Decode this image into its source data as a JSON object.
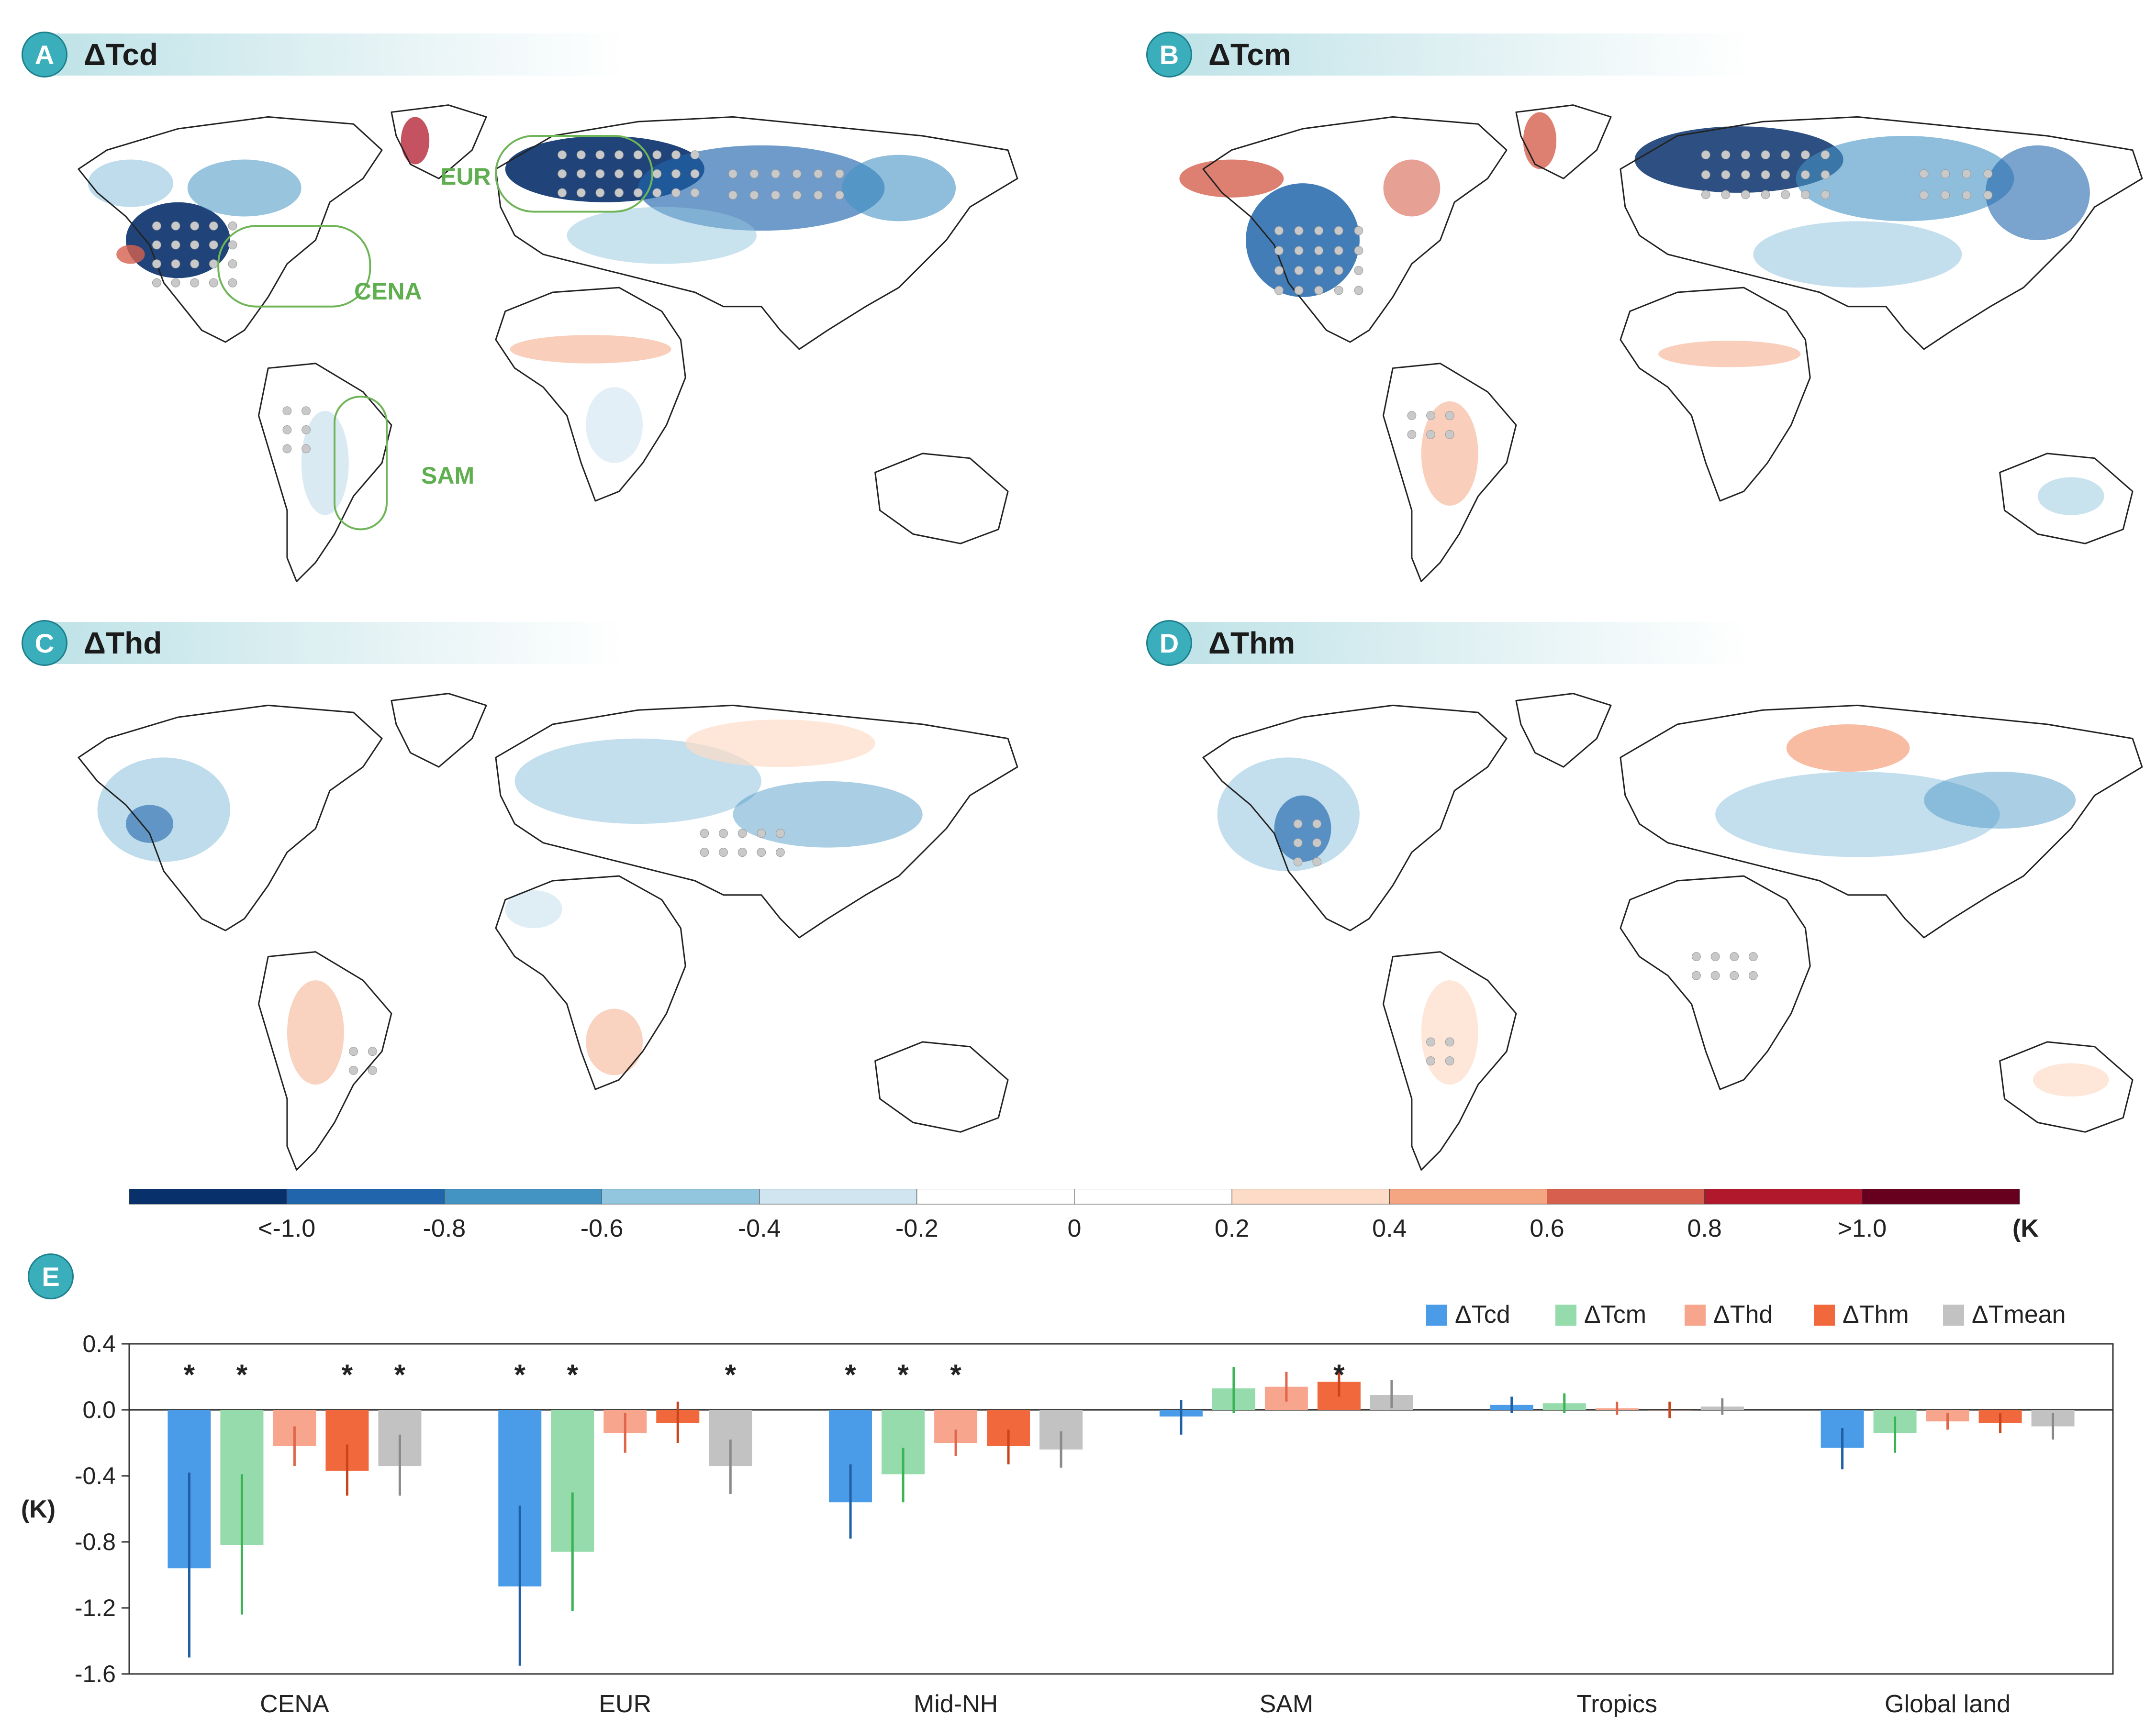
{
  "panels": [
    {
      "letter": "A",
      "title": "ΔTcd",
      "regions": [
        "EUR",
        "CENA",
        "SAM"
      ]
    },
    {
      "letter": "B",
      "title": "ΔTcm"
    },
    {
      "letter": "C",
      "title": "ΔThd"
    },
    {
      "letter": "D",
      "title": "ΔThm"
    }
  ],
  "colorbar": {
    "colors": [
      "#08306b",
      "#2166ac",
      "#4393c3",
      "#92c5de",
      "#d1e5f0",
      "#ffffff",
      "#ffffff",
      "#fddbc7",
      "#f4a582",
      "#d6604d",
      "#b2182b",
      "#67001f"
    ],
    "labels": [
      "<-1.0",
      "-0.8",
      "-0.6",
      "-0.4",
      "-0.2",
      "0",
      "0.2",
      "0.4",
      "0.6",
      "0.8",
      ">1.0"
    ],
    "unit": "(K)"
  },
  "panel_e": {
    "letter": "E"
  },
  "chart_data": {
    "type": "bar",
    "categories": [
      "CENA",
      "EUR",
      "Mid-NH",
      "SAM",
      "Tropics",
      "Global land"
    ],
    "ylabel": "(K)",
    "ylim": [
      -1.6,
      0.4
    ],
    "yticks": [
      "0.4",
      "0.0",
      "-0.4",
      "-0.8",
      "-1.2",
      "-1.6"
    ],
    "significance_marker": "*",
    "legend_position": "top-right",
    "series": [
      {
        "name": "ΔTcd",
        "color": "#4a9be8",
        "edge": "#1f5fa6",
        "values": [
          -0.96,
          -1.07,
          -0.56,
          -0.04,
          0.03,
          -0.23
        ],
        "err_low": [
          -1.5,
          -1.55,
          -0.78,
          -0.15,
          -0.02,
          -0.36
        ],
        "err_high": [
          -0.38,
          -0.58,
          -0.33,
          0.06,
          0.08,
          -0.11
        ],
        "sig": [
          true,
          true,
          true,
          false,
          false,
          false
        ]
      },
      {
        "name": "ΔTcm",
        "color": "#95dbac",
        "edge": "#3bb456",
        "values": [
          -0.82,
          -0.86,
          -0.39,
          0.13,
          0.04,
          -0.14
        ],
        "err_low": [
          -1.24,
          -1.22,
          -0.56,
          -0.02,
          -0.02,
          -0.26
        ],
        "err_high": [
          -0.39,
          -0.5,
          -0.23,
          0.26,
          0.1,
          -0.04
        ],
        "sig": [
          true,
          true,
          true,
          false,
          false,
          false
        ]
      },
      {
        "name": "ΔThd",
        "color": "#f7a68d",
        "edge": "#e0654b",
        "values": [
          -0.22,
          -0.14,
          -0.2,
          0.14,
          0.01,
          -0.07
        ],
        "err_low": [
          -0.34,
          -0.26,
          -0.28,
          0.05,
          -0.03,
          -0.12
        ],
        "err_high": [
          -0.1,
          -0.02,
          -0.12,
          0.23,
          0.05,
          -0.02
        ],
        "sig": [
          false,
          false,
          true,
          false,
          false,
          false
        ]
      },
      {
        "name": "ΔThm",
        "color": "#f2683d",
        "edge": "#c94419",
        "values": [
          -0.37,
          -0.08,
          -0.22,
          0.17,
          0.0,
          -0.08
        ],
        "err_low": [
          -0.52,
          -0.2,
          -0.33,
          0.08,
          -0.05,
          -0.14
        ],
        "err_high": [
          -0.21,
          0.05,
          -0.12,
          0.26,
          0.05,
          -0.02
        ],
        "sig": [
          true,
          false,
          false,
          true,
          false,
          false
        ]
      },
      {
        "name": "ΔTmean",
        "color": "#c2c2c2",
        "edge": "#8a8a8a",
        "values": [
          -0.34,
          -0.34,
          -0.24,
          0.09,
          0.02,
          -0.1
        ],
        "err_low": [
          -0.52,
          -0.51,
          -0.35,
          0.01,
          -0.03,
          -0.18
        ],
        "err_high": [
          -0.15,
          -0.18,
          -0.13,
          0.18,
          0.07,
          -0.02
        ],
        "sig": [
          true,
          true,
          false,
          false,
          false,
          false
        ]
      }
    ]
  }
}
